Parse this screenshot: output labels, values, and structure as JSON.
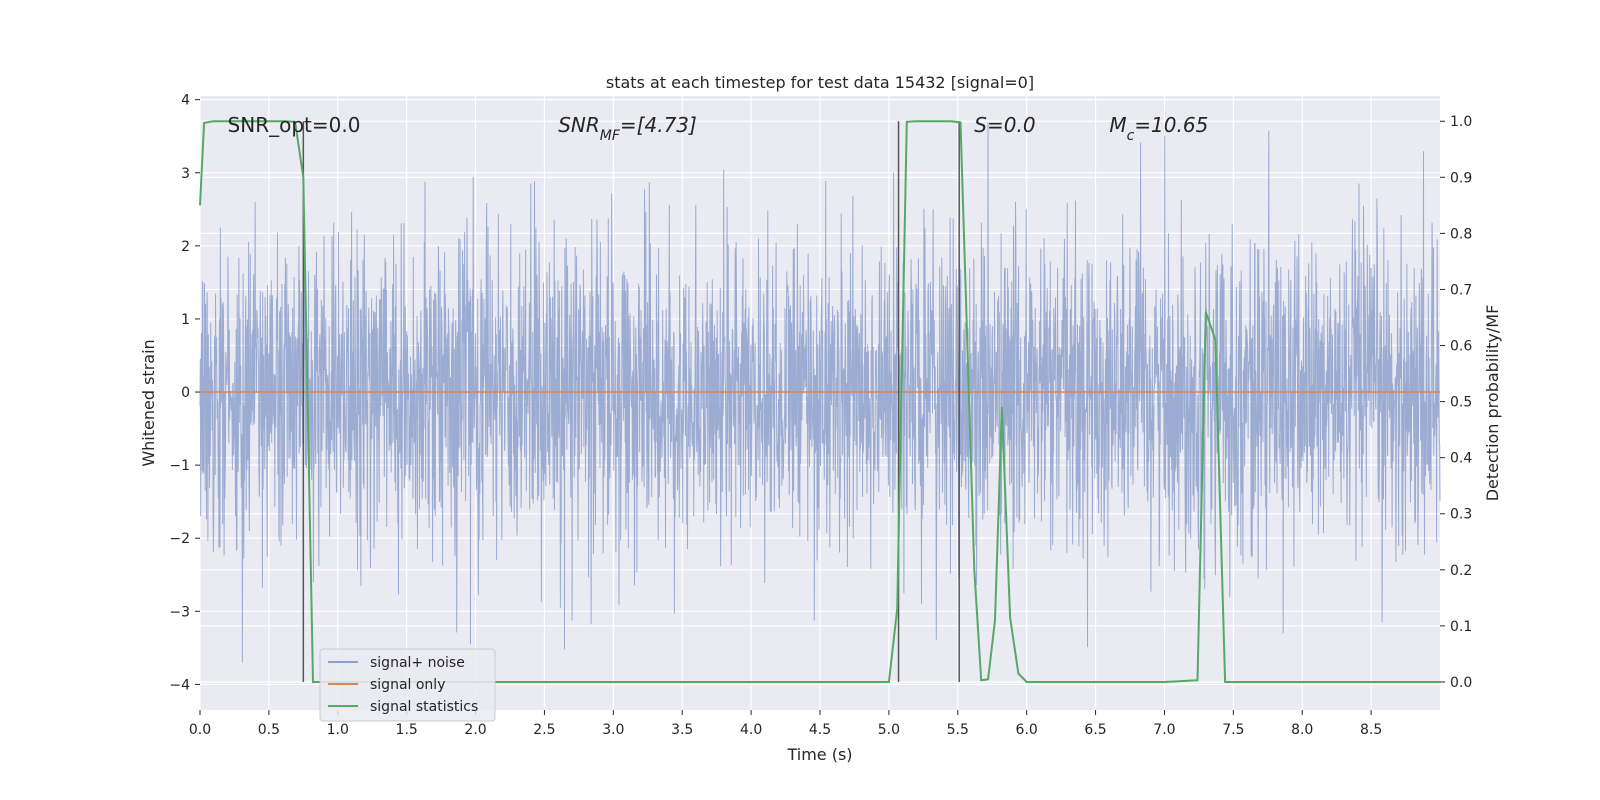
{
  "chart_data": {
    "type": "line",
    "title": "stats at each timestep for test data 15432 [signal=0]",
    "xlabel": "Time (s)",
    "ylabel_left": "Whitened strain",
    "ylabel_right": "Detection probability/MF",
    "xlim": [
      0,
      9.0
    ],
    "ylim_left": [
      -4.35,
      4.05
    ],
    "ylim_right": [
      -0.05,
      1.045
    ],
    "grid": true,
    "x_ticks": [
      "0.0",
      "0.5",
      "1.0",
      "1.5",
      "2.0",
      "2.5",
      "3.0",
      "3.5",
      "4.0",
      "4.5",
      "5.0",
      "5.5",
      "6.0",
      "6.5",
      "7.0",
      "7.5",
      "8.0",
      "8.5"
    ],
    "y_ticks_left": [
      "4",
      "3",
      "2",
      "1",
      "0",
      "−1",
      "−2",
      "−3",
      "−4"
    ],
    "y_ticks_right": [
      "1.0",
      "0.9",
      "0.8",
      "0.7",
      "0.6",
      "0.5",
      "0.4",
      "0.3",
      "0.2",
      "0.1",
      "0.0"
    ],
    "annotations": [
      {
        "text": "SNR_opt=0.0",
        "x": 0.2,
        "y": 3.65,
        "italic": false
      },
      {
        "text": "SNR_MF=[4.73]",
        "x": 2.6,
        "y": 3.65,
        "italic": true
      },
      {
        "text": "S=0.0",
        "x": 5.62,
        "y": 3.65,
        "italic": true
      },
      {
        "text": "M_c=10.65",
        "x": 6.6,
        "y": 3.65,
        "italic": true
      }
    ],
    "vertical_lines_x": [
      0.75,
      5.07,
      5.51
    ],
    "vertical_lines_span_prob": [
      0.0,
      1.0
    ],
    "legend": {
      "placement": "lower-left",
      "entries": [
        "signal+ noise",
        "signal only",
        "signal statistics"
      ]
    },
    "series": [
      {
        "name": "signal+ noise",
        "color": "#8da0cb",
        "kind": "noise",
        "amplitude_approx": "typical |y| up to ~2.5, extremes ~3.7",
        "x_range": [
          0,
          9.0
        ]
      },
      {
        "name": "signal only",
        "color": "#dd8452",
        "x": [
          0,
          9.0
        ],
        "y": [
          0,
          0
        ]
      },
      {
        "name": "signal statistics",
        "color": "#55a868",
        "axis": "right",
        "x": [
          0.0,
          0.03,
          0.1,
          0.2,
          0.4,
          0.6,
          0.69,
          0.75,
          0.82,
          1.0,
          2.0,
          3.0,
          4.0,
          5.0,
          5.06,
          5.13,
          5.2,
          5.3,
          5.45,
          5.52,
          5.62,
          5.67,
          5.72,
          5.77,
          5.82,
          5.88,
          5.94,
          6.0,
          6.5,
          7.0,
          7.24,
          7.3,
          7.37,
          7.44,
          7.5,
          8.0,
          9.0
        ],
        "y": [
          0.85,
          0.997,
          1.0,
          1.0,
          1.0,
          1.0,
          0.999,
          0.9,
          0.0,
          0.0,
          0.0,
          0.0,
          0.0,
          0.0,
          0.13,
          0.999,
          1.0,
          1.0,
          1.0,
          0.998,
          0.2,
          0.003,
          0.005,
          0.11,
          0.49,
          0.115,
          0.015,
          0.0,
          0.0,
          0.0,
          0.003,
          0.66,
          0.61,
          0.0,
          0.0,
          0.0,
          0.0
        ]
      }
    ]
  }
}
